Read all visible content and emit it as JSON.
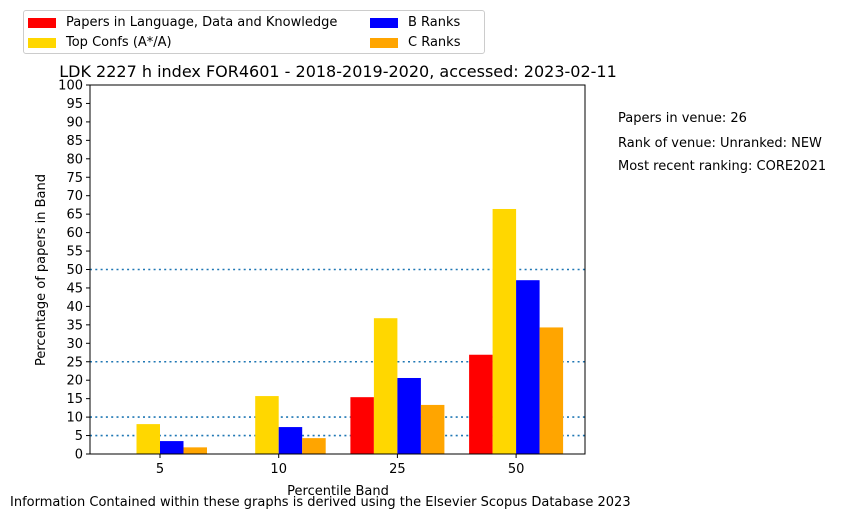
{
  "chart_data": {
    "type": "bar",
    "title": "LDK 2227 h index FOR4601 - 2018-2019-2020, accessed: 2023-02-11",
    "xlabel": "Percentile Band",
    "ylabel": "Percentage of papers in Band",
    "categories": [
      "5",
      "10",
      "25",
      "50"
    ],
    "ylim": [
      0,
      100
    ],
    "yticks": [
      0,
      5,
      10,
      15,
      20,
      25,
      30,
      35,
      40,
      45,
      50,
      55,
      60,
      65,
      70,
      75,
      80,
      85,
      90,
      95,
      100
    ],
    "reference_lines": [
      5,
      10,
      25,
      50
    ],
    "reference_line_color": "#1f77b4",
    "grid": false,
    "legend_position": "top-left, above plot, 2 columns",
    "series": [
      {
        "name": "Papers in Language, Data and Knowledge",
        "color": "#ff0000",
        "values": [
          0,
          0,
          15.4,
          26.9
        ]
      },
      {
        "name": "Top Confs (A*/A)",
        "color": "#ffd700",
        "values": [
          8.1,
          15.7,
          36.8,
          66.4
        ]
      },
      {
        "name": "B Ranks",
        "color": "#0000ff",
        "values": [
          3.5,
          7.3,
          20.6,
          47.1
        ]
      },
      {
        "name": "C Ranks",
        "color": "#ffa500",
        "values": [
          1.8,
          4.3,
          13.3,
          34.3
        ]
      }
    ]
  },
  "side_notes": {
    "papers": "Papers in venue: 26",
    "rank": "Rank of venue: Unranked: NEW",
    "ranking": "Most recent ranking: CORE2021"
  },
  "footnote": "Information Contained within these graphs is derived using the Elsevier Scopus Database 2023"
}
